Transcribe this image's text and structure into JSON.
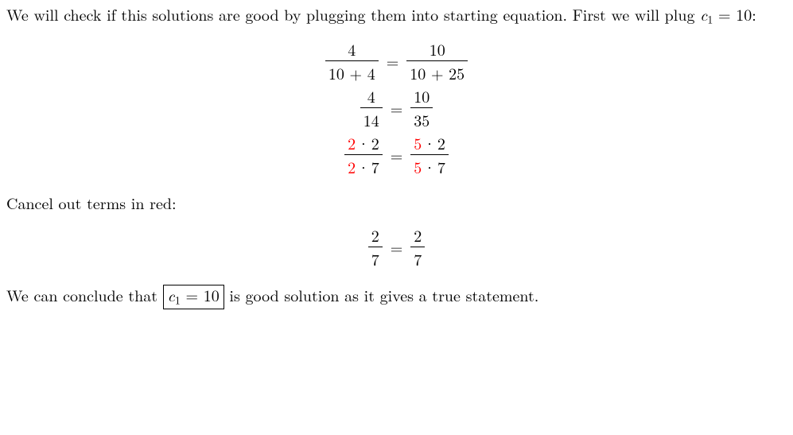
{
  "colors": {
    "text": "#000000",
    "highlight": "#ff0000",
    "background": "#ffffff",
    "box_border": "#000000"
  },
  "typography": {
    "body_fontsize": 20,
    "font_family": "Latin Modern Roman / Computer Modern serif"
  },
  "para1_prefix": "We will check if this solutions are good by plugging them into starting equation. First we will plug ",
  "para1_var": "c",
  "para1_sub": "1",
  "para1_eq_rhs": " = 10",
  "para1_suffix": ":",
  "eqs": {
    "line1": {
      "lnum": "4",
      "lden_a": "10",
      "lden_plus": " + ",
      "lden_b": "4",
      "rnum": "10",
      "rden_a": "10",
      "rden_plus": " + ",
      "rden_b": "25"
    },
    "line2": {
      "lnum": "4",
      "lden": "14",
      "rnum": "10",
      "rden": "35"
    },
    "line3": {
      "lnum_red": "2",
      "lnum_rest": "2",
      "lden_red": "2",
      "lden_rest": "7",
      "rnum_red": "5",
      "rnum_rest": "2",
      "rden_red": "5",
      "rden_rest": "7",
      "dot": "·"
    },
    "eq_sign": "="
  },
  "para2": "Cancel out terms in red:",
  "eq4": {
    "lnum": "2",
    "lden": "7",
    "rnum": "2",
    "rden": "7"
  },
  "para3_prefix": "We can conclude that ",
  "para3_box_var": "c",
  "para3_box_sub": "1",
  "para3_box_rhs": " = 10",
  "para3_suffix": " is good solution as it gives a true statement."
}
